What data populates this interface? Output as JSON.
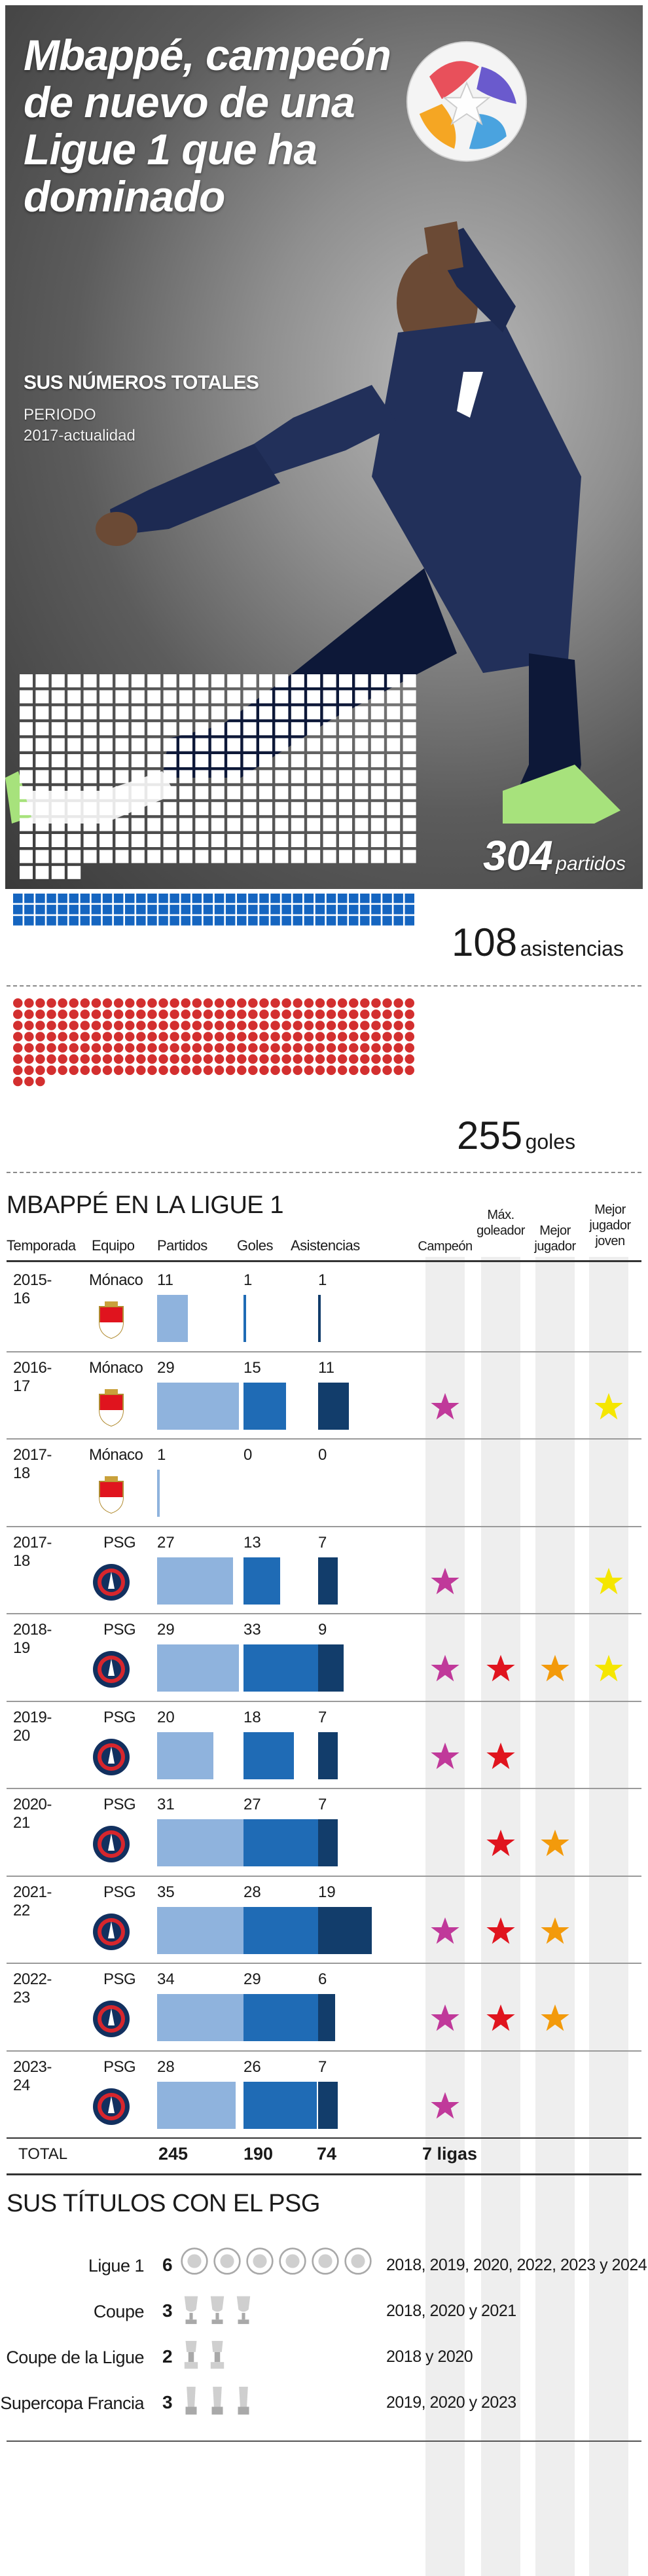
{
  "hero": {
    "title": "Mbappé, campeón de nuevo de una Ligue 1 que ha dominado",
    "totals_heading": "SUS NÚMEROS TOTALES",
    "period_label": "PERIODO",
    "period_value": "2017-actualidad",
    "matches_total": "304",
    "matches_unit": "partidos",
    "assists_total": "108",
    "assists_unit": "asistencias",
    "goals_total": "255",
    "goals_unit": "goles",
    "colors": {
      "matches": "#ffffff",
      "assists": "#1565c0",
      "goals": "#d32f2f"
    }
  },
  "table": {
    "title": "MBAPPÉ EN LA LIGUE 1",
    "headers": {
      "season": "Temporada",
      "team": "Equipo",
      "matches": "Partidos",
      "goals": "Goles",
      "assists": "Asistencias",
      "champion": "Campeón",
      "top_scorer": "Máx. goleador",
      "best_player": "Mejor jugador",
      "best_young": "Mejor jugador joven"
    },
    "total_label": "TOTAL",
    "total_matches": "245",
    "total_goals": "190",
    "total_assists": "74",
    "total_leagues": "7 ligas",
    "colors": {
      "matches_bar": "#8fb3dd",
      "goals_bar": "#1f6bb5",
      "assists_bar": "#123d6b",
      "champion_star": "#c0399a",
      "top_scorer_star": "#e0141e",
      "best_player_star": "#f39a0b",
      "best_young_star": "#f5e600"
    }
  },
  "chart_data": {
    "type": "bar",
    "categories": [
      "2015-16",
      "2016-17",
      "2017-18",
      "2017-18",
      "2018-19",
      "2019-20",
      "2020-21",
      "2021-22",
      "2022-23",
      "2023-24"
    ],
    "teams": [
      "Mónaco",
      "Mónaco",
      "Mónaco",
      "PSG",
      "PSG",
      "PSG",
      "PSG",
      "PSG",
      "PSG",
      "PSG"
    ],
    "series": [
      {
        "name": "Partidos",
        "values": [
          11,
          29,
          1,
          27,
          29,
          20,
          31,
          35,
          34,
          28
        ]
      },
      {
        "name": "Goles",
        "values": [
          1,
          15,
          0,
          13,
          33,
          18,
          27,
          28,
          29,
          26
        ]
      },
      {
        "name": "Asistencias",
        "values": [
          1,
          11,
          0,
          7,
          9,
          7,
          7,
          19,
          6,
          7
        ]
      }
    ],
    "awards": {
      "Campeón": [
        false,
        true,
        false,
        true,
        true,
        true,
        false,
        true,
        true,
        true
      ],
      "Máx. goleador": [
        false,
        false,
        false,
        false,
        true,
        true,
        true,
        true,
        true,
        false
      ],
      "Mejor jugador": [
        false,
        false,
        false,
        false,
        true,
        false,
        true,
        true,
        true,
        false
      ],
      "Mejor jugador joven": [
        false,
        true,
        false,
        true,
        true,
        false,
        false,
        false,
        false,
        false
      ]
    },
    "title": "MBAPPÉ EN LA LIGUE 1",
    "xlabel": "Temporada",
    "ylabel": ""
  },
  "titles": {
    "heading": "SUS TÍTULOS CON EL PSG",
    "items": [
      {
        "name": "Ligue 1",
        "count": "6",
        "icons": 6,
        "icon": "ligue1-trophy-icon",
        "years": "2018, 2019, 2020, 2022, 2023 y 2024"
      },
      {
        "name": "Coupe",
        "count": "3",
        "icons": 3,
        "icon": "coupe-trophy-icon",
        "years": "2018, 2020 y 2021"
      },
      {
        "name": "Coupe de la Ligue",
        "count": "2",
        "icons": 2,
        "icon": "coupe-ligue-trophy-icon",
        "years": "2018 y 2020"
      },
      {
        "name": "Supercopa Francia",
        "count": "3",
        "icons": 3,
        "icon": "supercopa-trophy-icon",
        "years": "2019, 2020 y 2023"
      }
    ]
  }
}
